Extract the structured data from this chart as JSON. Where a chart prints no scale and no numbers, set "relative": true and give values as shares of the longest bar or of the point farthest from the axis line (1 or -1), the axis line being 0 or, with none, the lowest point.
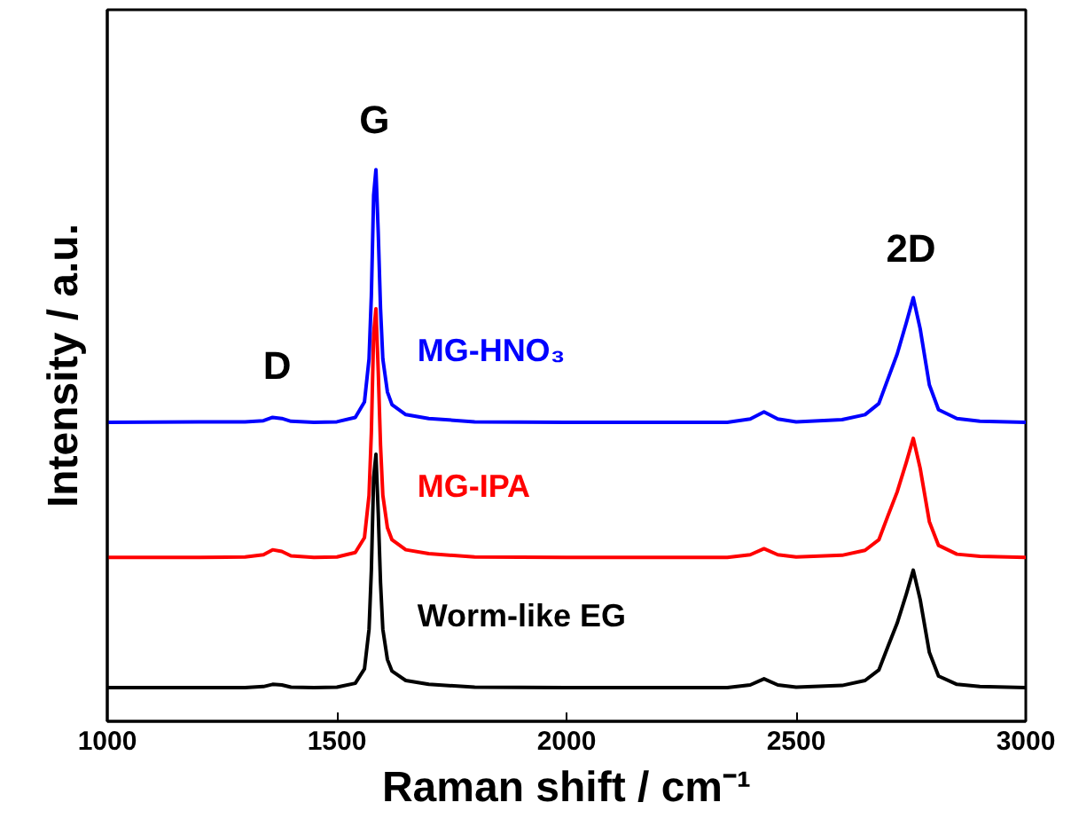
{
  "chart_data": {
    "type": "line",
    "relative": true,
    "xlabel": "Raman shift / cm⁻¹",
    "ylabel": "Intensity / a.u.",
    "x": [
      1000,
      1200,
      1300,
      1340,
      1360,
      1380,
      1400,
      1450,
      1500,
      1540,
      1560,
      1570,
      1575,
      1580,
      1585,
      1590,
      1595,
      1600,
      1610,
      1620,
      1650,
      1700,
      1800,
      2000,
      2200,
      2350,
      2400,
      2430,
      2460,
      2500,
      2600,
      2650,
      2680,
      2700,
      2720,
      2740,
      2755,
      2770,
      2790,
      2810,
      2850,
      2900,
      3000
    ],
    "xlim": [
      1000,
      3000
    ],
    "xticks": [
      1000,
      1500,
      2000,
      2500,
      3000
    ],
    "grid": false,
    "line_style": "solid",
    "series": [
      {
        "name": "Worm-like EG",
        "color": "#000000",
        "values": [
          0.061,
          0.061,
          0.061,
          0.063,
          0.067,
          0.066,
          0.062,
          0.061,
          0.062,
          0.069,
          0.095,
          0.167,
          0.273,
          0.442,
          0.484,
          0.378,
          0.251,
          0.167,
          0.112,
          0.091,
          0.074,
          0.067,
          0.062,
          0.061,
          0.061,
          0.061,
          0.066,
          0.077,
          0.066,
          0.062,
          0.065,
          0.074,
          0.093,
          0.136,
          0.178,
          0.231,
          0.274,
          0.221,
          0.125,
          0.082,
          0.067,
          0.063,
          0.061
        ]
      },
      {
        "name": "MG-IPA",
        "color": "#ff0000",
        "values": [
          0.297,
          0.297,
          0.298,
          0.302,
          0.311,
          0.308,
          0.3,
          0.297,
          0.298,
          0.306,
          0.333,
          0.41,
          0.523,
          0.703,
          0.748,
          0.635,
          0.5,
          0.41,
          0.351,
          0.329,
          0.311,
          0.304,
          0.298,
          0.297,
          0.297,
          0.297,
          0.302,
          0.313,
          0.302,
          0.298,
          0.301,
          0.31,
          0.329,
          0.373,
          0.416,
          0.47,
          0.513,
          0.459,
          0.362,
          0.319,
          0.303,
          0.299,
          0.297
        ]
      },
      {
        "name": "MG-HNO₃",
        "color": "#0000ff",
        "values": [
          0.542,
          0.543,
          0.543,
          0.545,
          0.551,
          0.549,
          0.544,
          0.542,
          0.543,
          0.551,
          0.579,
          0.657,
          0.771,
          0.954,
          1.0,
          0.886,
          0.748,
          0.657,
          0.597,
          0.574,
          0.556,
          0.549,
          0.543,
          0.542,
          0.542,
          0.542,
          0.548,
          0.561,
          0.548,
          0.543,
          0.547,
          0.556,
          0.576,
          0.621,
          0.666,
          0.723,
          0.768,
          0.712,
          0.61,
          0.565,
          0.549,
          0.544,
          0.542
        ]
      }
    ],
    "annotations": [
      "D",
      "G",
      "2D"
    ]
  }
}
